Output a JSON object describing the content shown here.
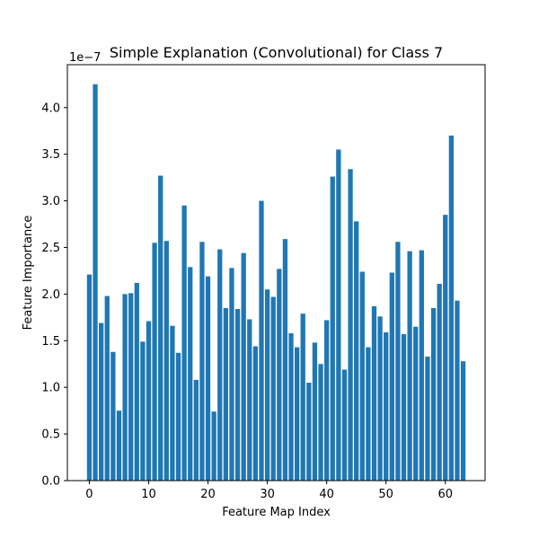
{
  "chart_data": {
    "type": "bar",
    "title": "Simple Explanation (Convolutional) for Class 7",
    "xlabel": "Feature Map Index",
    "ylabel": "Feature Importance",
    "y_scale_label": "1e−7",
    "xlim": [
      -3.7,
      66.7
    ],
    "ylim": [
      0,
      4.46
    ],
    "x_ticks": [
      0,
      10,
      20,
      30,
      40,
      50,
      60
    ],
    "x_tick_labels": [
      "0",
      "10",
      "20",
      "30",
      "40",
      "50",
      "60"
    ],
    "y_ticks": [
      0,
      0.5,
      1,
      1.5,
      2,
      2.5,
      3,
      3.5,
      4
    ],
    "y_tick_labels": [
      "0.0",
      "0.5",
      "1.0",
      "1.5",
      "2.0",
      "2.5",
      "3.0",
      "3.5",
      "4.0"
    ],
    "bar_color": "#1f77b4",
    "x": [
      0,
      1,
      2,
      3,
      4,
      5,
      6,
      7,
      8,
      9,
      10,
      11,
      12,
      13,
      14,
      15,
      16,
      17,
      18,
      19,
      20,
      21,
      22,
      23,
      24,
      25,
      26,
      27,
      28,
      29,
      30,
      31,
      32,
      33,
      34,
      35,
      36,
      37,
      38,
      39,
      40,
      41,
      42,
      43,
      44,
      45,
      46,
      47,
      48,
      49,
      50,
      51,
      52,
      53,
      54,
      55,
      56,
      57,
      58,
      59,
      60,
      61,
      62,
      63
    ],
    "values": [
      2.21,
      4.25,
      1.69,
      1.98,
      1.38,
      0.75,
      2.0,
      2.01,
      2.12,
      1.49,
      1.71,
      2.55,
      3.27,
      2.57,
      1.66,
      1.37,
      2.95,
      2.29,
      1.08,
      2.56,
      2.19,
      0.74,
      2.48,
      1.85,
      2.28,
      1.84,
      2.44,
      1.73,
      1.44,
      3.0,
      2.05,
      1.97,
      2.27,
      2.59,
      1.58,
      1.43,
      1.79,
      1.05,
      1.48,
      1.25,
      1.72,
      3.26,
      3.55,
      1.19,
      3.34,
      2.78,
      2.24,
      1.43,
      1.87,
      1.76,
      1.59,
      2.23,
      2.56,
      1.57,
      2.46,
      1.65,
      2.47,
      1.33,
      1.85,
      2.11,
      2.85,
      3.7,
      1.93,
      1.28
    ]
  }
}
